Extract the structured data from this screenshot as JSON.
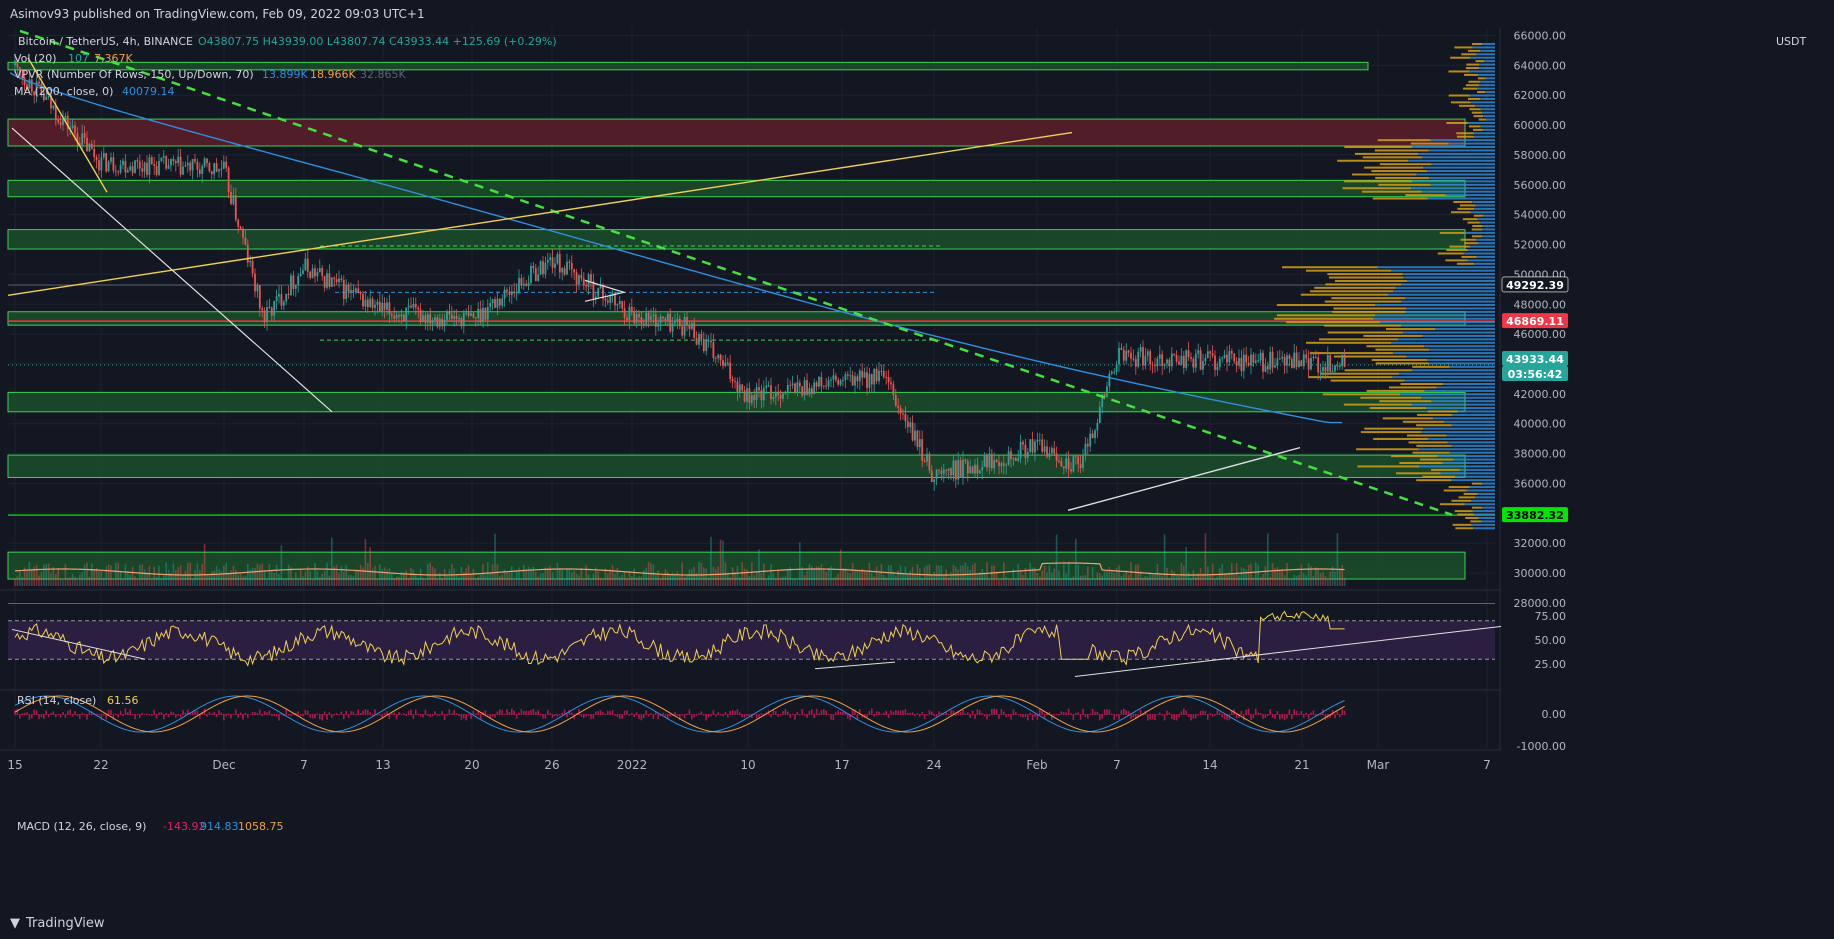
{
  "header": {
    "published": "Asimov93 published on TradingView.com, Feb 09, 2022 09:03 UTC+1"
  },
  "footer": {
    "brand": "TradingView",
    "logo_icon": "tradingview-logo-icon"
  },
  "legend": {
    "symbol": "Bitcoin / TetherUS, 4h, BINANCE",
    "ohlc": "O43807.75  H43939.00  L43807.74  C43933.44  +125.69 (+0.29%)",
    "vol_label": "Vol (20)",
    "vol_a": "107",
    "vol_b": "7.367K",
    "vpvr_label": "VPVR (Number Of Rows, 150, Up/Down, 70)",
    "vpvr_a": "13.899K",
    "vpvr_b": "18.966K",
    "vpvr_c": "32.865K",
    "ma_label": "MA (200, close, 0)",
    "ma_value": "40079.14",
    "rsi_label": "RSI (14, close)",
    "rsi_value": "61.56",
    "macd_label": "MACD (12, 26, close, 9)",
    "macd_a": "-143.92",
    "macd_b": "914.83",
    "macd_c": "1058.75"
  },
  "price_axis": {
    "currency": "USDT",
    "ticks": [
      "64000.00",
      "62000.00",
      "60000.00",
      "58000.00",
      "56000.00",
      "54000.00",
      "52000.00",
      "50000.00",
      "48000.00",
      "46000.00",
      "42000.00",
      "40000.00",
      "38000.00",
      "36000.00",
      "32000.00",
      "30000.00",
      "28000.00"
    ],
    "top_cut": "66000.00",
    "labels": [
      {
        "text": "49292.39",
        "bg": "#131722",
        "fg": "#ffffff"
      },
      {
        "text": "46869.11",
        "bg": "#f23645",
        "fg": "#ffffff"
      },
      {
        "text": "43933.44",
        "bg": "#26a69a",
        "fg": "#ffffff"
      },
      {
        "text": "03:56:42",
        "bg": "#26a69a",
        "fg": "#ffffff"
      },
      {
        "text": "33882.32",
        "bg": "#00e600",
        "fg": "#000000"
      }
    ]
  },
  "rsi_axis": {
    "ticks": [
      "75.00",
      "50.00",
      "25.00"
    ]
  },
  "macd_axis": {
    "ticks": [
      "0.00",
      "-1000.00"
    ]
  },
  "time_axis": {
    "labels": [
      "15",
      "22",
      "Dec",
      "7",
      "13",
      "20",
      "26",
      "2022",
      "10",
      "17",
      "24",
      "Feb",
      "7",
      "14",
      "21",
      "Mar",
      "7"
    ]
  },
  "colors": {
    "background": "#131722",
    "zone": "#1b4d2a",
    "zone_border": "#39d353",
    "red_zone": "#5c1f2a",
    "ma": "#2f8fdd",
    "trend": "#41e23b",
    "wedge": "#f0d050",
    "rsi": "#f0d050",
    "rsi_band": "#2d1f45"
  },
  "chart_data": {
    "type": "line",
    "title": "Bitcoin / TetherUS, 4h, BINANCE",
    "ylim": [
      29000,
      66500
    ],
    "close_approx": {
      "x": [
        "Nov 15",
        "Nov 22",
        "Dec 1",
        "Dec 4",
        "Dec 7",
        "Dec 13",
        "Dec 20",
        "Dec 26",
        "Jan 1",
        "Jan 10",
        "Jan 17",
        "Jan 21",
        "Jan 24",
        "Feb 1",
        "Feb 4",
        "Feb 7",
        "Feb 9"
      ],
      "y": [
        64000,
        57500,
        57000,
        47000,
        50500,
        47500,
        47000,
        51000,
        47300,
        41900,
        42800,
        36500,
        35500,
        38500,
        37000,
        44500,
        43933
      ]
    },
    "horizontal_levels": [
      49292.39,
      46869.11,
      33882.32
    ],
    "zones": [
      [
        63700,
        64200
      ],
      [
        58600,
        60400
      ],
      [
        55200,
        56300
      ],
      [
        51700,
        53000
      ],
      [
        46600,
        47500
      ],
      [
        40800,
        42100
      ],
      [
        36400,
        37900
      ],
      [
        29600,
        31400
      ]
    ],
    "ma200_last": 40079.14,
    "rsi_last": 61.56,
    "macd": {
      "macd": -143.92,
      "signal": 914.83,
      "hist": 1058.75
    }
  }
}
